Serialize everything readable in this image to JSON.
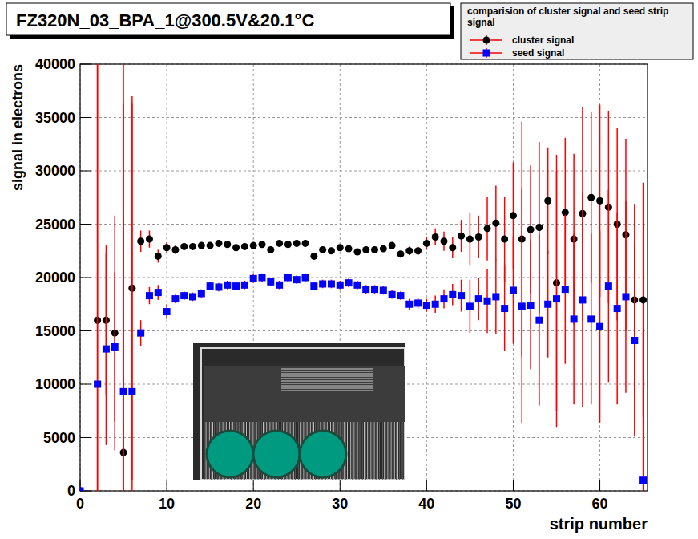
{
  "chart_data": {
    "type": "scatter",
    "title": "FZ320N_03_BPA_1@300.5V&20.1°C",
    "x_label": "strip number",
    "y_label": "signal in electrons",
    "legend_title": "comparision of cluster signal and seed strip signal",
    "legend": "top-right",
    "grid": true,
    "xlim": [
      0,
      65.5
    ],
    "ylim": [
      0,
      40000
    ],
    "xticks": [
      0,
      10,
      20,
      30,
      40,
      50,
      60
    ],
    "yticks": [
      0,
      5000,
      10000,
      15000,
      20000,
      25000,
      30000,
      35000,
      40000
    ],
    "x": [
      0,
      1,
      2,
      3,
      4,
      5,
      6,
      7,
      8,
      9,
      10,
      11,
      12,
      13,
      14,
      15,
      16,
      17,
      18,
      19,
      20,
      21,
      22,
      23,
      24,
      25,
      26,
      27,
      28,
      29,
      30,
      31,
      32,
      33,
      34,
      35,
      36,
      37,
      38,
      39,
      40,
      41,
      42,
      43,
      44,
      45,
      46,
      47,
      48,
      49,
      50,
      51,
      52,
      53,
      54,
      55,
      56,
      57,
      58,
      59,
      60,
      61,
      62,
      63,
      64,
      65
    ],
    "series": [
      {
        "name": "cluster signal",
        "color": "#000000",
        "marker": "circle",
        "values": [
          0,
          null,
          16000,
          16000,
          14800,
          3600,
          19000,
          23400,
          23600,
          22000,
          22800,
          22600,
          22900,
          22900,
          23000,
          23000,
          23200,
          23100,
          22800,
          22900,
          23000,
          23100,
          22600,
          23200,
          23100,
          23200,
          23200,
          22000,
          22600,
          22500,
          22800,
          22700,
          22400,
          22600,
          22600,
          22700,
          23000,
          22200,
          22500,
          22500,
          23200,
          23800,
          23400,
          22800,
          23900,
          23600,
          23800,
          24600,
          25100,
          23600,
          25800,
          23600,
          24500,
          24700,
          27200,
          19500,
          26100,
          23600,
          26000,
          27500,
          27200,
          26600,
          25000,
          24000,
          17900,
          17900
        ],
        "errors": [
          0,
          null,
          25000,
          7000,
          11000,
          40000,
          18000,
          1000,
          800,
          600,
          500,
          400,
          300,
          300,
          300,
          300,
          300,
          300,
          300,
          300,
          300,
          300,
          300,
          300,
          300,
          300,
          300,
          300,
          300,
          300,
          300,
          300,
          300,
          300,
          300,
          300,
          300,
          300,
          400,
          400,
          600,
          800,
          900,
          1000,
          1500,
          2500,
          2000,
          3000,
          3500,
          4000,
          5000,
          11000,
          6000,
          8000,
          5000,
          12000,
          7000,
          8000,
          10000,
          8000,
          9000,
          9000,
          9000,
          9000,
          9000,
          11000
        ]
      },
      {
        "name": "seed signal",
        "color": "#0000ff",
        "marker": "square",
        "values": [
          0,
          null,
          10000,
          13300,
          13500,
          9300,
          9300,
          14800,
          18300,
          18600,
          16800,
          18000,
          18300,
          18200,
          18500,
          19200,
          19100,
          19300,
          19200,
          19300,
          19900,
          20000,
          19600,
          19300,
          20000,
          19800,
          20000,
          19200,
          19400,
          19400,
          19300,
          19500,
          19300,
          18900,
          18900,
          18800,
          18400,
          18300,
          17500,
          17600,
          17400,
          17500,
          18000,
          18400,
          18300,
          17300,
          18000,
          17800,
          18200,
          17100,
          18800,
          17300,
          17400,
          16000,
          17500,
          18000,
          18900,
          16100,
          17900,
          16100,
          15400,
          19200,
          17100,
          18200,
          14100,
          1000
        ],
        "errors": [
          0,
          null,
          30000,
          9000,
          7000,
          27000,
          27000,
          1200,
          800,
          700,
          700,
          400,
          400,
          400,
          400,
          400,
          400,
          400,
          400,
          400,
          400,
          400,
          400,
          400,
          400,
          400,
          400,
          400,
          400,
          400,
          400,
          400,
          400,
          400,
          400,
          400,
          400,
          400,
          500,
          500,
          600,
          800,
          900,
          1000,
          1500,
          2500,
          2000,
          3000,
          3500,
          4000,
          5000,
          11000,
          6000,
          8000,
          5000,
          12000,
          7000,
          8000,
          10000,
          8000,
          9000,
          9000,
          9000,
          9000,
          9000,
          14000
        ]
      }
    ]
  }
}
